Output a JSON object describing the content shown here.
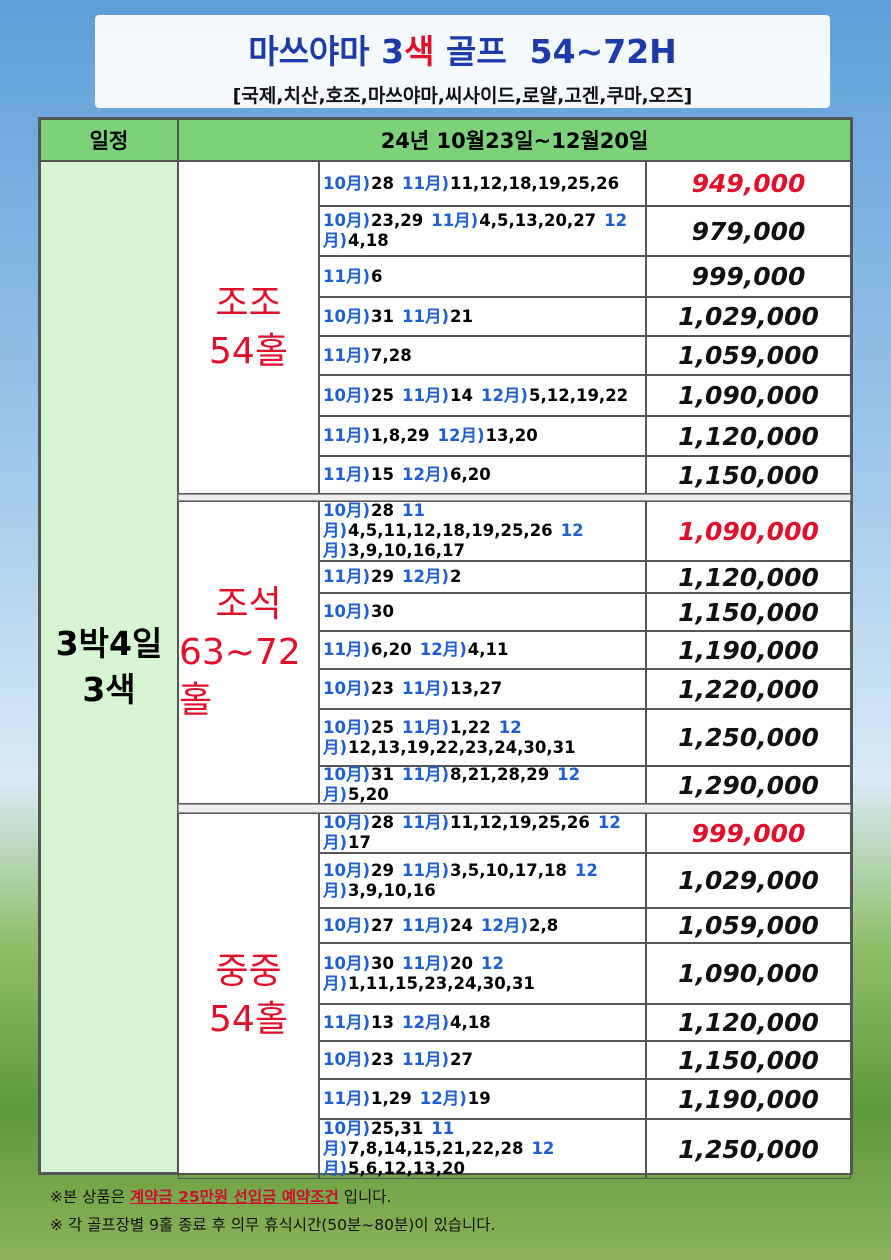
{
  "header": {
    "title": {
      "before": "마쓰야마 3",
      "highlight": "색",
      "after": " 골프  54~72H"
    },
    "subtitle": "[국제,치산,호조,마쓰야마,씨사이드,로얄,고겐,쿠마,오즈]"
  },
  "table": {
    "head": [
      "일정",
      "24년 10월23일~12월20일"
    ],
    "trip": [
      "3박4일",
      "3색"
    ],
    "groups": [
      {
        "label": [
          "조조",
          "54홀"
        ],
        "rows": [
          {
            "dates": [
              [
                "10月)",
                "28"
              ],
              [
                "11月)",
                "11,12,18,19,25,26"
              ]
            ],
            "price": "949,000",
            "price_color": "#e0102a"
          },
          {
            "dates": [
              [
                "10月)",
                "23,29"
              ],
              [
                "11月)",
                "4,5,13,20,27"
              ],
              [
                "12月)",
                "4,18"
              ]
            ],
            "price": "979,000"
          },
          {
            "dates": [
              [
                "11月)",
                "6"
              ]
            ],
            "price": "999,000"
          },
          {
            "dates": [
              [
                "10月)",
                "31"
              ],
              [
                "11月)",
                "21"
              ]
            ],
            "price": "1,029,000"
          },
          {
            "dates": [
              [
                "11月)",
                "7,28"
              ]
            ],
            "price": "1,059,000"
          },
          {
            "dates": [
              [
                "10月)",
                "25"
              ],
              [
                "11月)",
                "14"
              ],
              [
                "12月)",
                "5,12,19,22"
              ]
            ],
            "price": "1,090,000"
          },
          {
            "dates": [
              [
                "11月)",
                "1,8,29"
              ],
              [
                "12月)",
                "13,20"
              ]
            ],
            "price": "1,120,000"
          },
          {
            "dates": [
              [
                "11月)",
                "15"
              ],
              [
                "12月)",
                "6,20"
              ]
            ],
            "price": "1,150,000"
          }
        ]
      },
      {
        "label": [
          "조석",
          "63~72홀"
        ],
        "rows": [
          {
            "dates": [
              [
                "10月)",
                "28"
              ],
              [
                "11月)",
                "4,5,11,12,18,19,25,26"
              ],
              [
                "12月)",
                "3,9,10,16,17"
              ]
            ],
            "price": "1,090,000",
            "price_color": "#e0102a"
          },
          {
            "dates": [
              [
                "11月)",
                "29"
              ],
              [
                "12月)",
                "2"
              ]
            ],
            "price": "1,120,000"
          },
          {
            "dates": [
              [
                "10月)",
                "30"
              ]
            ],
            "price": "1,150,000"
          },
          {
            "dates": [
              [
                "11月)",
                "6,20"
              ],
              [
                "12月)",
                "4,11"
              ]
            ],
            "price": "1,190,000"
          },
          {
            "dates": [
              [
                "10月)",
                "23"
              ],
              [
                "11月)",
                "13,27"
              ]
            ],
            "price": "1,220,000"
          },
          {
            "dates": [
              [
                "10月)",
                "25"
              ],
              [
                "11月)",
                "1,22"
              ],
              [
                "12月)",
                "12,13,19,22,23,24,30,31"
              ]
            ],
            "price": "1,250,000"
          },
          {
            "dates": [
              [
                "10月)",
                "31"
              ],
              [
                "11月)",
                "8,21,28,29"
              ],
              [
                "12月)",
                "5,20"
              ]
            ],
            "price": "1,290,000"
          }
        ]
      },
      {
        "label": [
          "중중",
          "54홀"
        ],
        "rows": [
          {
            "dates": [
              [
                "10月)",
                "28"
              ],
              [
                "11月)",
                "11,12,19,25,26"
              ],
              [
                "12月)",
                "17"
              ]
            ],
            "price": "999,000",
            "price_color": "#e0102a"
          },
          {
            "dates": [
              [
                "10月)",
                "29"
              ],
              [
                "11月)",
                "3,5,10,17,18"
              ],
              [
                "12月)",
                "3,9,10,16"
              ]
            ],
            "price": "1,029,000"
          },
          {
            "dates": [
              [
                "10月)",
                "27"
              ],
              [
                "11月)",
                "24"
              ],
              [
                "12月)",
                "2,8"
              ]
            ],
            "price": "1,059,000"
          },
          {
            "dates": [
              [
                "10月)",
                "30"
              ],
              [
                "11月)",
                "20"
              ],
              [
                "12月)",
                "1,11,15,23,24,30,31"
              ]
            ],
            "price": "1,090,000"
          },
          {
            "dates": [
              [
                "11月)",
                "13"
              ],
              [
                "12月)",
                "4,18"
              ]
            ],
            "price": "1,120,000"
          },
          {
            "dates": [
              [
                "10月)",
                "23"
              ],
              [
                "11月)",
                "27"
              ]
            ],
            "price": "1,150,000"
          },
          {
            "dates": [
              [
                "11月)",
                "1,29"
              ],
              [
                "12月)",
                "19"
              ]
            ],
            "price": "1,190,000"
          },
          {
            "dates": [
              [
                "10月)",
                "25,31"
              ],
              [
                "11月)",
                "7,8,14,15,21,22,28"
              ],
              [
                "12月)",
                "5,6,12,13,20"
              ]
            ],
            "price": "1,250,000"
          }
        ]
      }
    ]
  },
  "notes": [
    {
      "before": "※본 상품은 ",
      "highlight": "계약금 25만원 선입금 예약조건",
      "after": " 입니다."
    },
    {
      "text": "※ 각 골프장별 9홀 종료 후 의무 휴식시간(50분~80분)이 있습니다."
    }
  ]
}
